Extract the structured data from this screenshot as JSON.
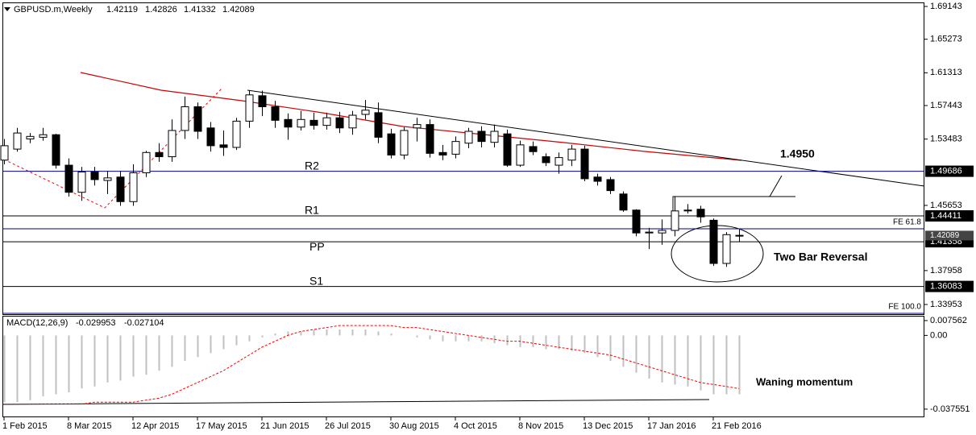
{
  "chart_data": [
    {
      "type": "candlestick",
      "title": "GBPUSD.m,Weekly",
      "categories": [
        "1 Feb 2015",
        null,
        null,
        null,
        null,
        "8 Mar 2015",
        null,
        null,
        null,
        null,
        "12 Apr 2015",
        null,
        null,
        null,
        null,
        "17 May 2015",
        null,
        null,
        null,
        null,
        "21 Jun 2015",
        null,
        null,
        null,
        null,
        "26 Jul 2015",
        null,
        null,
        null,
        null,
        "30 Aug 2015",
        null,
        null,
        null,
        null,
        "4 Oct 2015",
        null,
        null,
        null,
        null,
        "8 Nov 2015",
        null,
        null,
        null,
        null,
        "13 Dec 2015",
        null,
        null,
        null,
        null,
        "17 Jan 2016",
        null,
        null,
        null,
        null,
        "21 Feb 2016",
        null,
        null
      ],
      "open": [
        1.51,
        1.523,
        1.535,
        1.537,
        1.54,
        1.504,
        1.472,
        1.496,
        1.486,
        1.49,
        1.461,
        1.495,
        1.519,
        1.514,
        1.545,
        1.573,
        1.548,
        1.528,
        1.525,
        1.556,
        1.586,
        1.573,
        1.558,
        1.549,
        1.557,
        1.551,
        1.56,
        1.548,
        1.564,
        1.566,
        1.541,
        1.516,
        1.548,
        1.552,
        1.519,
        1.517,
        1.53,
        1.544,
        1.531,
        1.541,
        1.504,
        1.526,
        1.514,
        1.504,
        1.51,
        1.523,
        1.49,
        1.487,
        1.47,
        1.451,
        1.424,
        1.424,
        1.427,
        1.45,
        1.452,
        1.439,
        1.388,
        1.42119
      ],
      "high": [
        1.535,
        1.548,
        1.542,
        1.548,
        1.541,
        1.512,
        1.502,
        1.502,
        1.497,
        1.497,
        1.505,
        1.521,
        1.53,
        1.558,
        1.585,
        1.578,
        1.555,
        1.545,
        1.56,
        1.592,
        1.592,
        1.58,
        1.565,
        1.568,
        1.566,
        1.566,
        1.567,
        1.568,
        1.581,
        1.578,
        1.547,
        1.549,
        1.56,
        1.558,
        1.528,
        1.538,
        1.548,
        1.55,
        1.552,
        1.546,
        1.533,
        1.532,
        1.518,
        1.519,
        1.528,
        1.527,
        1.494,
        1.49,
        1.473,
        1.452,
        1.43,
        1.44,
        1.467,
        1.458,
        1.456,
        1.441,
        1.425,
        1.42826
      ],
      "low": [
        1.505,
        1.52,
        1.53,
        1.533,
        1.5,
        1.467,
        1.462,
        1.48,
        1.47,
        1.456,
        1.456,
        1.49,
        1.508,
        1.508,
        1.535,
        1.535,
        1.52,
        1.515,
        1.522,
        1.548,
        1.562,
        1.548,
        1.534,
        1.545,
        1.546,
        1.546,
        1.542,
        1.54,
        1.558,
        1.53,
        1.512,
        1.511,
        1.532,
        1.513,
        1.51,
        1.512,
        1.524,
        1.525,
        1.525,
        1.502,
        1.502,
        1.516,
        1.503,
        1.494,
        1.503,
        1.485,
        1.48,
        1.47,
        1.449,
        1.42,
        1.405,
        1.41,
        1.42,
        1.447,
        1.436,
        1.385,
        1.384,
        1.41332
      ],
      "close": [
        1.527,
        1.542,
        1.538,
        1.54,
        1.504,
        1.472,
        1.496,
        1.487,
        1.489,
        1.461,
        1.495,
        1.519,
        1.514,
        1.545,
        1.573,
        1.544,
        1.527,
        1.525,
        1.556,
        1.587,
        1.573,
        1.557,
        1.549,
        1.558,
        1.551,
        1.56,
        1.548,
        1.563,
        1.569,
        1.537,
        1.516,
        1.545,
        1.552,
        1.518,
        1.516,
        1.532,
        1.544,
        1.532,
        1.544,
        1.504,
        1.528,
        1.52,
        1.507,
        1.513,
        1.523,
        1.488,
        1.485,
        1.474,
        1.451,
        1.424,
        1.425,
        1.427,
        1.45,
        1.451,
        1.443,
        1.388,
        1.422,
        1.42089
      ],
      "ylim": [
        1.3281,
        1.6962
      ],
      "yticks": [
        1.69143,
        1.65273,
        1.61313,
        1.57443,
        1.53483,
        1.45653,
        1.37958,
        1.33953
      ],
      "levels": [
        {
          "label": "R2",
          "value": 1.49686,
          "color": "#00008b"
        },
        {
          "label": "R1",
          "value": 1.44411,
          "color": "#000000"
        },
        {
          "label": "PP",
          "value": 1.41358,
          "color": "#000000"
        },
        {
          "label": "S1",
          "value": 1.36083,
          "color": "#000000"
        },
        {
          "label": "FE 61.8",
          "value": 1.4289,
          "color": "#00008b"
        },
        {
          "label": "FE 100.0",
          "value": 1.329,
          "color": "#00008b"
        }
      ],
      "annotations": [
        "1.4950",
        "Two Bar Reversal"
      ]
    },
    {
      "type": "bar",
      "title": "MACD(12,26,9)",
      "series": [
        {
          "color": "#c0c0c0",
          "values": [
            -0.034,
            -0.034,
            -0.033,
            -0.031,
            -0.03,
            -0.029,
            -0.027,
            -0.026,
            -0.024,
            -0.023,
            -0.021,
            -0.02,
            -0.018,
            -0.016,
            -0.013,
            -0.011,
            -0.009,
            -0.007,
            -0.005,
            -0.003,
            -0.001,
            0.001,
            0.002,
            0.002,
            0.003,
            0.003,
            0.003,
            0.003,
            0.003,
            0.002,
            0.001,
            0.0,
            -0.001,
            -0.002,
            -0.003,
            -0.003,
            -0.003,
            -0.003,
            -0.004,
            -0.005,
            -0.006,
            -0.006,
            -0.007,
            -0.007,
            -0.008,
            -0.009,
            -0.011,
            -0.013,
            -0.016,
            -0.019,
            -0.022,
            -0.024,
            -0.025,
            -0.026,
            -0.028,
            -0.03,
            -0.03,
            -0.029953
          ]
        },
        {
          "color": "#ff0000",
          "style": "dashed",
          "values": [
            -0.035,
            -0.035,
            -0.035,
            -0.035,
            -0.035,
            -0.035,
            -0.035,
            -0.034,
            -0.034,
            -0.034,
            -0.034,
            -0.033,
            -0.032,
            -0.03,
            -0.027,
            -0.024,
            -0.021,
            -0.018,
            -0.014,
            -0.01,
            -0.006,
            -0.003,
            0.0,
            0.002,
            0.003,
            0.004,
            0.005,
            0.005,
            0.005,
            0.005,
            0.005,
            0.004,
            0.004,
            0.003,
            0.002,
            0.001,
            0.0,
            -0.001,
            -0.002,
            -0.003,
            -0.003,
            -0.004,
            -0.005,
            -0.006,
            -0.007,
            -0.008,
            -0.009,
            -0.01,
            -0.012,
            -0.014,
            -0.016,
            -0.018,
            -0.02,
            -0.022,
            -0.024,
            -0.025,
            -0.026,
            -0.027104
          ]
        }
      ],
      "ylim": [
        -0.0417,
        0.01
      ],
      "yticks": [
        0.007562,
        {
          "value": 0,
          "label": "0.00"
        },
        -0.037551
      ],
      "annotations": [
        "Waning momentum"
      ]
    }
  ]
}
